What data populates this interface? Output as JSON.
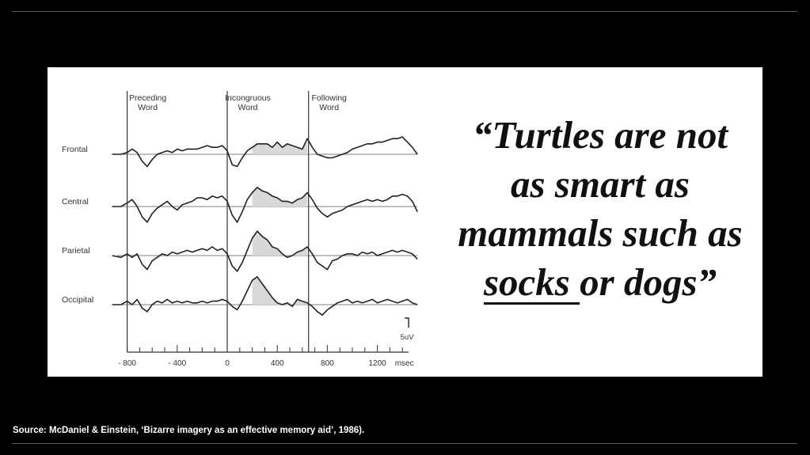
{
  "quote": {
    "before_underline": "“Turtles are not as smart as mammals such as ",
    "underlined": "socks ",
    "after_underline": "or dogs”"
  },
  "source": "Source: McDaniel & Einstein, ‘Bizarre imagery as an effective memory aid’, 1986).",
  "chart_data": {
    "type": "line",
    "title": "",
    "markers": [
      {
        "label": "Preceding Word",
        "x": -800
      },
      {
        "label": "Incongruous Word",
        "x": 0
      },
      {
        "label": "Following Word",
        "x": 650
      }
    ],
    "channels": [
      "Frontal",
      "Central",
      "Parietal",
      "Occipital"
    ],
    "x_ticks": [
      {
        "label": "- 800",
        "value": -800
      },
      {
        "label": "- 400",
        "value": -400
      },
      {
        "label": "0",
        "value": 0
      },
      {
        "label": "400",
        "value": 400
      },
      {
        "label": "800",
        "value": 800
      },
      {
        "label": "1200",
        "value": 1200
      }
    ],
    "x_unit": "msec",
    "scale_label": "5uV",
    "xlim": [
      -880,
      1520
    ],
    "series": [
      {
        "name": "Frontal",
        "x": [
          -920,
          -850,
          -800,
          -760,
          -720,
          -680,
          -640,
          -600,
          -560,
          -520,
          -480,
          -440,
          -400,
          -360,
          -320,
          -280,
          -240,
          -200,
          -160,
          -120,
          -80,
          -40,
          0,
          40,
          80,
          120,
          160,
          200,
          240,
          280,
          320,
          360,
          400,
          440,
          480,
          520,
          560,
          600,
          640,
          680,
          720,
          760,
          800,
          840,
          880,
          920,
          960,
          1000,
          1040,
          1080,
          1120,
          1160,
          1200,
          1240,
          1280,
          1320,
          1360,
          1400,
          1440,
          1480,
          1520
        ],
        "y": [
          0,
          0,
          1,
          3,
          1,
          -4,
          -7,
          -3,
          0,
          1,
          2,
          1,
          3,
          2,
          3,
          3,
          3,
          4,
          5,
          4,
          4,
          5,
          2,
          -6,
          -7,
          -2,
          2,
          4,
          6,
          6,
          6,
          4,
          7,
          4,
          6,
          5,
          4,
          3,
          9,
          4,
          0,
          -1,
          -2,
          -2,
          -1,
          0,
          1,
          3,
          4,
          5,
          6,
          6,
          7,
          7,
          8,
          9,
          9,
          10,
          7,
          4,
          0
        ]
      },
      {
        "name": "Central",
        "x": [
          -920,
          -850,
          -800,
          -760,
          -720,
          -680,
          -640,
          -600,
          -560,
          -520,
          -480,
          -440,
          -400,
          -360,
          -320,
          -280,
          -240,
          -200,
          -160,
          -120,
          -80,
          -40,
          0,
          40,
          80,
          120,
          160,
          200,
          240,
          280,
          320,
          360,
          400,
          440,
          480,
          520,
          560,
          600,
          640,
          680,
          720,
          760,
          800,
          840,
          880,
          920,
          960,
          1000,
          1040,
          1080,
          1120,
          1160,
          1200,
          1240,
          1280,
          1320,
          1360,
          1400,
          1440,
          1480,
          1520
        ],
        "y": [
          0,
          0,
          2,
          4,
          0,
          -6,
          -9,
          -4,
          -1,
          1,
          3,
          0,
          -2,
          1,
          2,
          3,
          5,
          5,
          4,
          6,
          5,
          6,
          3,
          -5,
          -9,
          -3,
          4,
          8,
          11,
          9,
          8,
          6,
          5,
          3,
          3,
          2,
          4,
          5,
          8,
          4,
          -1,
          -4,
          -6,
          -4,
          -3,
          -2,
          0,
          1,
          2,
          3,
          4,
          3,
          4,
          3,
          4,
          6,
          6,
          7,
          6,
          3,
          -3
        ]
      },
      {
        "name": "Parietal",
        "x": [
          -920,
          -850,
          -800,
          -760,
          -720,
          -680,
          -640,
          -600,
          -560,
          -520,
          -480,
          -440,
          -400,
          -360,
          -320,
          -280,
          -240,
          -200,
          -160,
          -120,
          -80,
          -40,
          0,
          40,
          80,
          120,
          160,
          200,
          240,
          280,
          320,
          360,
          400,
          440,
          480,
          520,
          560,
          600,
          640,
          680,
          720,
          760,
          800,
          840,
          880,
          920,
          960,
          1000,
          1040,
          1080,
          1120,
          1160,
          1200,
          1240,
          1280,
          1320,
          1360,
          1400,
          1440,
          1480,
          1520
        ],
        "y": [
          0,
          -1,
          1,
          -1,
          1,
          -5,
          -8,
          -3,
          -1,
          1,
          0,
          2,
          1,
          2,
          3,
          2,
          3,
          4,
          3,
          5,
          3,
          4,
          1,
          -6,
          -9,
          -4,
          3,
          10,
          14,
          11,
          9,
          5,
          4,
          1,
          -1,
          0,
          2,
          3,
          5,
          1,
          -4,
          -6,
          -8,
          -3,
          -2,
          0,
          1,
          1,
          0,
          2,
          1,
          2,
          0,
          1,
          2,
          3,
          2,
          3,
          2,
          1,
          -2
        ]
      },
      {
        "name": "Occipital",
        "x": [
          -920,
          -850,
          -800,
          -760,
          -720,
          -680,
          -640,
          -600,
          -560,
          -520,
          -480,
          -440,
          -400,
          -360,
          -320,
          -280,
          -240,
          -200,
          -160,
          -120,
          -80,
          -40,
          0,
          40,
          80,
          120,
          160,
          200,
          240,
          280,
          320,
          360,
          400,
          440,
          480,
          520,
          560,
          600,
          640,
          680,
          720,
          760,
          800,
          840,
          880,
          920,
          960,
          1000,
          1040,
          1080,
          1120,
          1160,
          1200,
          1240,
          1280,
          1320,
          1360,
          1400,
          1440,
          1480,
          1520
        ],
        "y": [
          0,
          0,
          2,
          0,
          3,
          -2,
          -4,
          0,
          2,
          1,
          3,
          1,
          2,
          1,
          2,
          1,
          1,
          2,
          1,
          2,
          2,
          3,
          2,
          -1,
          -3,
          2,
          8,
          14,
          16,
          12,
          8,
          4,
          1,
          0,
          1,
          -1,
          3,
          2,
          1,
          -1,
          -4,
          -6,
          -3,
          -1,
          1,
          2,
          3,
          1,
          2,
          1,
          2,
          3,
          1,
          2,
          3,
          2,
          1,
          2,
          3,
          1,
          0
        ]
      }
    ]
  }
}
